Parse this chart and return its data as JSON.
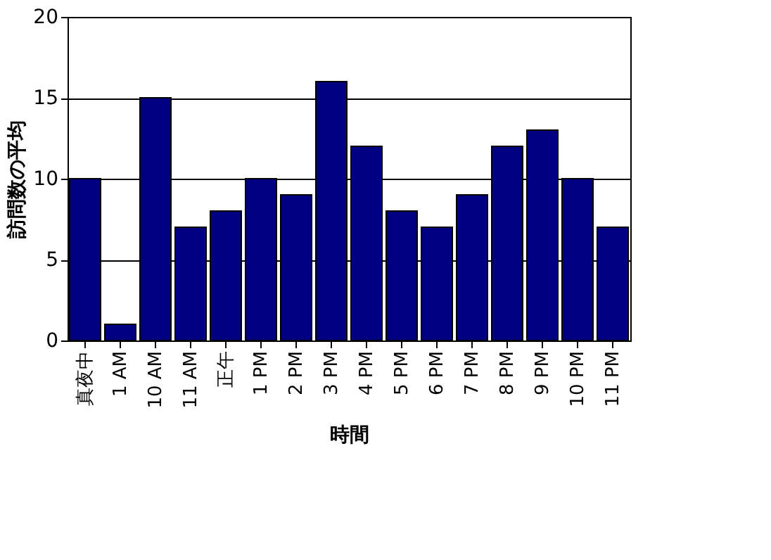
{
  "chart_data": {
    "type": "bar",
    "xlabel": "時間",
    "ylabel": "訪問数の平均",
    "categories": [
      "真夜中",
      "1 AM",
      "10 AM",
      "11 AM",
      "正午",
      "1 PM",
      "2 PM",
      "3 PM",
      "4 PM",
      "5 PM",
      "6 PM",
      "7 PM",
      "8 PM",
      "9 PM",
      "10 PM",
      "11 PM"
    ],
    "values": [
      10,
      1,
      15,
      7,
      8,
      10,
      9,
      16,
      12,
      8,
      7,
      9,
      12,
      13,
      10,
      7
    ],
    "color": "#000080",
    "ylim": [
      0,
      20
    ],
    "yticks": [
      0,
      5,
      10,
      15,
      20
    ],
    "grid": "y"
  }
}
